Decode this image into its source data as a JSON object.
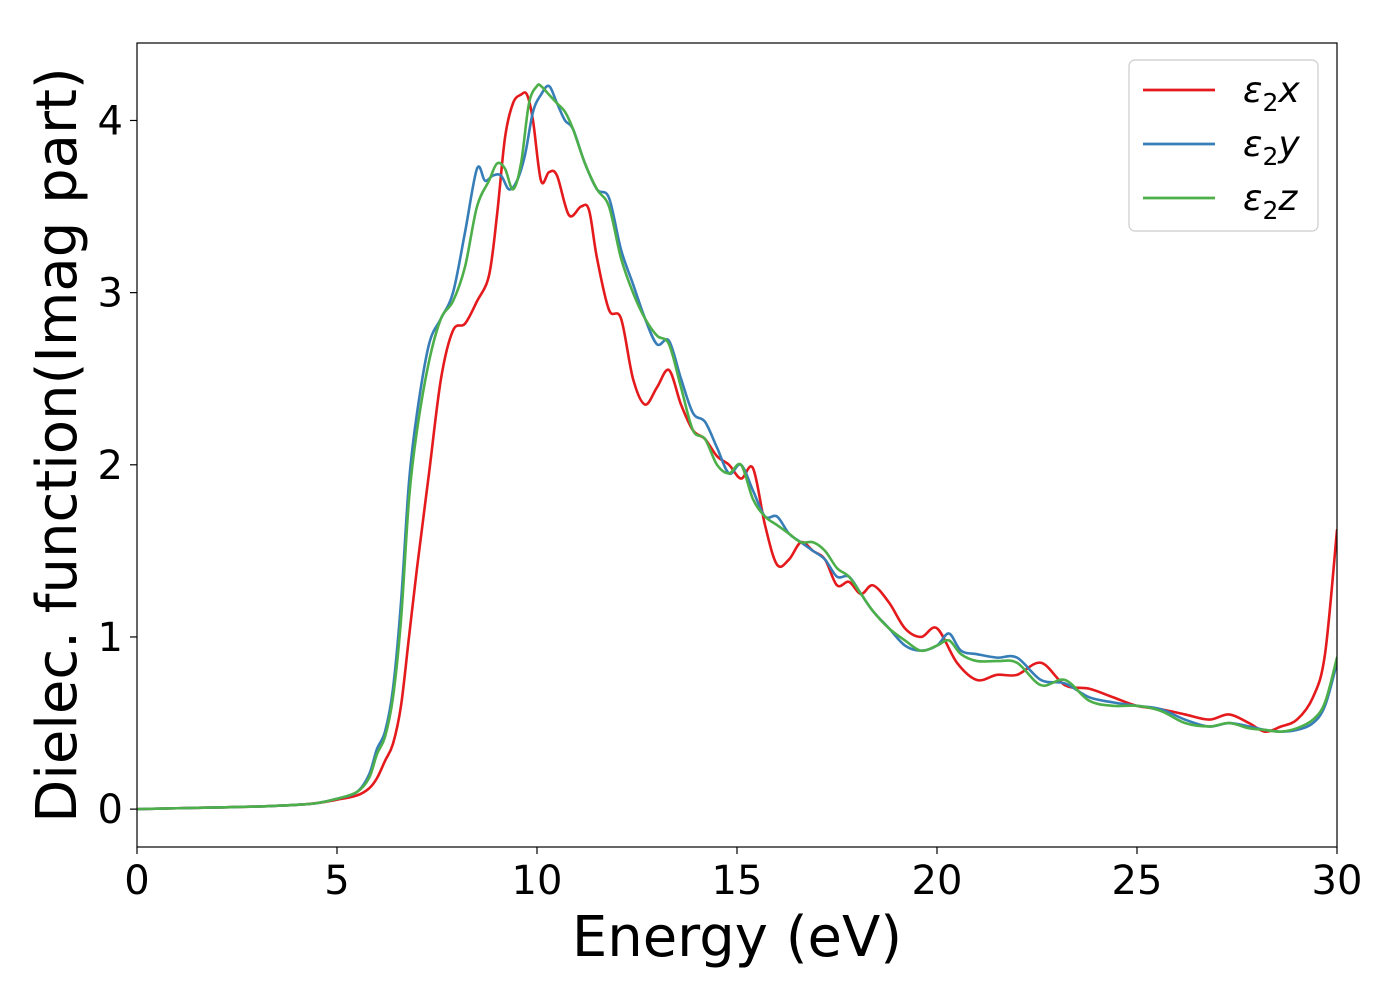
{
  "chart_data": {
    "type": "line",
    "title": "",
    "xlabel": "Energy (eV)",
    "ylabel": "Dielec. function(Imag part)",
    "xlim": [
      0,
      30
    ],
    "ylim": [
      -0.22,
      4.45
    ],
    "xticks": [
      0,
      5,
      10,
      15,
      20,
      25,
      30
    ],
    "yticks": [
      0,
      1,
      2,
      3,
      4
    ],
    "grid": false,
    "legend": "top-right",
    "series": [
      {
        "name": "ε2x",
        "label_main": "ε",
        "label_sub": "2",
        "label_tail": "x",
        "color": "#e41a1c",
        "x": [
          0,
          1,
          2,
          3,
          4,
          4.5,
          5,
          5.5,
          5.8,
          6.0,
          6.2,
          6.4,
          6.6,
          6.8,
          7.0,
          7.3,
          7.6,
          7.9,
          8.2,
          8.5,
          8.8,
          9.0,
          9.2,
          9.4,
          9.6,
          9.75,
          9.9,
          10.1,
          10.3,
          10.5,
          10.8,
          11.1,
          11.3,
          11.5,
          11.8,
          12.1,
          12.4,
          12.7,
          13.0,
          13.3,
          13.6,
          13.9,
          14.2,
          14.5,
          14.8,
          15.1,
          15.4,
          15.7,
          16.0,
          16.3,
          16.6,
          16.9,
          17.2,
          17.5,
          17.8,
          18.1,
          18.4,
          18.8,
          19.2,
          19.6,
          20.0,
          20.5,
          21.0,
          21.5,
          22.0,
          22.6,
          23.2,
          23.8,
          24.4,
          25.0,
          25.6,
          26.2,
          26.8,
          27.3,
          27.8,
          28.2,
          28.6,
          29.0,
          29.4,
          29.7,
          30.0
        ],
        "values": [
          0.0,
          0.005,
          0.01,
          0.015,
          0.025,
          0.035,
          0.055,
          0.08,
          0.12,
          0.18,
          0.28,
          0.38,
          0.6,
          1.0,
          1.4,
          1.95,
          2.5,
          2.78,
          2.82,
          2.95,
          3.1,
          3.45,
          3.9,
          4.1,
          4.15,
          4.15,
          4.0,
          3.65,
          3.7,
          3.68,
          3.45,
          3.5,
          3.48,
          3.2,
          2.9,
          2.85,
          2.5,
          2.35,
          2.45,
          2.55,
          2.35,
          2.2,
          2.15,
          2.05,
          2.0,
          1.92,
          1.98,
          1.65,
          1.42,
          1.45,
          1.55,
          1.5,
          1.45,
          1.3,
          1.32,
          1.25,
          1.3,
          1.2,
          1.05,
          1.0,
          1.05,
          0.85,
          0.75,
          0.78,
          0.78,
          0.85,
          0.72,
          0.7,
          0.65,
          0.6,
          0.58,
          0.55,
          0.52,
          0.55,
          0.5,
          0.45,
          0.48,
          0.52,
          0.65,
          0.9,
          1.62
        ]
      },
      {
        "name": "ε2y",
        "label_main": "ε",
        "label_sub": "2",
        "label_tail": "y",
        "color": "#377eb8",
        "x": [
          0,
          1,
          2,
          3,
          4,
          4.5,
          5,
          5.5,
          5.8,
          6.0,
          6.2,
          6.4,
          6.6,
          6.8,
          7.0,
          7.3,
          7.6,
          7.9,
          8.2,
          8.5,
          8.7,
          8.9,
          9.1,
          9.3,
          9.5,
          9.7,
          9.9,
          10.1,
          10.3,
          10.5,
          10.7,
          10.9,
          11.2,
          11.5,
          11.8,
          12.1,
          12.4,
          12.7,
          13.0,
          13.3,
          13.6,
          13.9,
          14.2,
          14.5,
          14.8,
          15.1,
          15.4,
          15.7,
          16.0,
          16.3,
          16.6,
          16.9,
          17.2,
          17.5,
          17.8,
          18.1,
          18.4,
          18.8,
          19.2,
          19.6,
          20.0,
          20.3,
          20.6,
          21.0,
          21.5,
          22.0,
          22.6,
          23.2,
          23.8,
          24.4,
          25.0,
          25.6,
          26.2,
          26.8,
          27.3,
          27.8,
          28.2,
          28.6,
          29.0,
          29.4,
          29.7,
          30.0
        ],
        "values": [
          0.0,
          0.005,
          0.01,
          0.015,
          0.025,
          0.035,
          0.06,
          0.1,
          0.2,
          0.35,
          0.45,
          0.7,
          1.2,
          1.9,
          2.3,
          2.7,
          2.85,
          3.0,
          3.35,
          3.72,
          3.65,
          3.68,
          3.68,
          3.6,
          3.65,
          3.8,
          4.05,
          4.15,
          4.2,
          4.1,
          4.0,
          3.95,
          3.75,
          3.6,
          3.55,
          3.25,
          3.05,
          2.85,
          2.7,
          2.72,
          2.5,
          2.3,
          2.25,
          2.1,
          1.95,
          2.0,
          1.85,
          1.7,
          1.7,
          1.6,
          1.55,
          1.5,
          1.45,
          1.35,
          1.35,
          1.25,
          1.15,
          1.05,
          0.95,
          0.92,
          0.95,
          1.02,
          0.92,
          0.9,
          0.88,
          0.88,
          0.75,
          0.73,
          0.65,
          0.62,
          0.6,
          0.58,
          0.52,
          0.48,
          0.5,
          0.48,
          0.46,
          0.45,
          0.46,
          0.5,
          0.6,
          0.85
        ]
      },
      {
        "name": "ε2z",
        "label_main": "ε",
        "label_sub": "2",
        "label_tail": "z",
        "color": "#4daf4a",
        "x": [
          0,
          1,
          2,
          3,
          4,
          4.5,
          5,
          5.5,
          5.8,
          6.0,
          6.2,
          6.4,
          6.6,
          6.8,
          7.0,
          7.3,
          7.6,
          7.9,
          8.2,
          8.5,
          8.8,
          9.0,
          9.2,
          9.4,
          9.6,
          9.8,
          10.0,
          10.1,
          10.3,
          10.5,
          10.7,
          10.9,
          11.2,
          11.5,
          11.8,
          12.1,
          12.4,
          12.7,
          13.0,
          13.3,
          13.6,
          13.9,
          14.2,
          14.5,
          14.8,
          15.1,
          15.4,
          15.7,
          16.0,
          16.3,
          16.6,
          16.9,
          17.2,
          17.5,
          17.8,
          18.1,
          18.4,
          18.8,
          19.2,
          19.6,
          20.0,
          20.3,
          20.6,
          21.0,
          21.5,
          22.0,
          22.6,
          23.2,
          23.8,
          24.4,
          25.0,
          25.6,
          26.2,
          26.8,
          27.3,
          27.8,
          28.2,
          28.6,
          29.0,
          29.4,
          29.7,
          30.0
        ],
        "values": [
          0.0,
          0.005,
          0.01,
          0.015,
          0.025,
          0.035,
          0.06,
          0.1,
          0.18,
          0.32,
          0.42,
          0.65,
          1.1,
          1.8,
          2.2,
          2.6,
          2.85,
          2.95,
          3.15,
          3.5,
          3.65,
          3.75,
          3.72,
          3.6,
          3.75,
          4.1,
          4.2,
          4.2,
          4.15,
          4.1,
          4.05,
          3.95,
          3.75,
          3.6,
          3.5,
          3.2,
          3.0,
          2.85,
          2.75,
          2.7,
          2.45,
          2.2,
          2.15,
          2.0,
          1.95,
          2.0,
          1.8,
          1.7,
          1.65,
          1.6,
          1.55,
          1.55,
          1.5,
          1.4,
          1.35,
          1.25,
          1.15,
          1.05,
          0.98,
          0.92,
          0.95,
          0.98,
          0.9,
          0.86,
          0.86,
          0.85,
          0.72,
          0.75,
          0.63,
          0.6,
          0.6,
          0.57,
          0.5,
          0.48,
          0.5,
          0.47,
          0.46,
          0.45,
          0.47,
          0.52,
          0.62,
          0.88
        ]
      }
    ]
  }
}
